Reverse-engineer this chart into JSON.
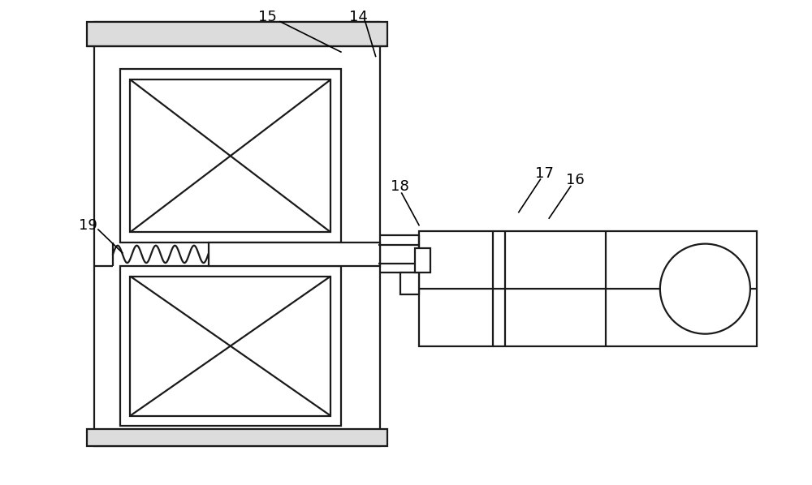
{
  "bg_color": "#ffffff",
  "line_color": "#1a1a1a",
  "lw": 1.6,
  "fig_w": 10.0,
  "fig_h": 5.98,
  "label_fontsize": 13
}
